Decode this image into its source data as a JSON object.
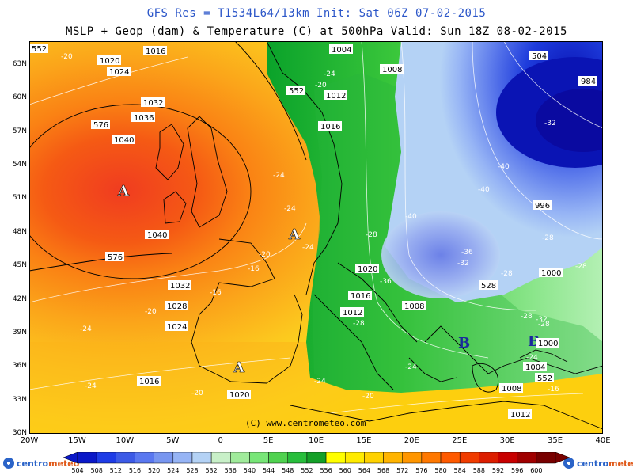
{
  "header": {
    "line1": "GFS Res = T1534L64/13km   Init: Sat 06Z 07-02-2015",
    "line2": "MSLP + Geop (dam) & Temperature (C) at 500hPa  Valid: Sun 18Z 08-02-2015"
  },
  "axes": {
    "lat_labels": [
      "63N",
      "60N",
      "57N",
      "54N",
      "51N",
      "48N",
      "45N",
      "42N",
      "39N",
      "36N",
      "33N",
      "30N"
    ],
    "lon_labels": [
      "20W",
      "15W",
      "10W",
      "5W",
      "0",
      "5E",
      "10E",
      "15E",
      "20E",
      "25E",
      "30E",
      "35E",
      "40E"
    ]
  },
  "pressure_centers": [
    {
      "label": "A",
      "lat": 51.5,
      "lon": -10
    },
    {
      "label": "A",
      "lat": 47.5,
      "lon": 8
    },
    {
      "label": "A",
      "lat": 36,
      "lon": 2
    },
    {
      "label": "B",
      "lat": 38.5,
      "lon": 26
    },
    {
      "label": "B",
      "lat": 38.5,
      "lon": 34
    }
  ],
  "isobar_labels": [
    "1020",
    "1024",
    "1032",
    "1036",
    "1040",
    "1040",
    "1032",
    "1028",
    "1024",
    "1016",
    "1020",
    "1016",
    "1004",
    "1008",
    "1012",
    "1016",
    "1020",
    "1016",
    "1012",
    "1008",
    "1000",
    "1004",
    "1008",
    "1012",
    "996",
    "984",
    "1000",
    "552"
  ],
  "isohypse_labels": [
    "576",
    "576",
    "552",
    "504",
    "528",
    "552"
  ],
  "temperature_labels": [
    "-20",
    "-24",
    "-24",
    "-20",
    "-16",
    "-16",
    "-20",
    "-24",
    "-20",
    "-24",
    "-20",
    "-24",
    "-24",
    "-28",
    "-40",
    "-36",
    "-40",
    "-40",
    "-36",
    "-32",
    "-28",
    "-28",
    "-32",
    "-28",
    "-28",
    "-24",
    "-24",
    "-20",
    "-16",
    "-24",
    "-28",
    "-28",
    "-32"
  ],
  "copyright": "(C) www.centrometeo.com",
  "logo": {
    "left": "centro",
    "left_accent": "meteo",
    "right": "centro",
    "right_accent": "meteo"
  },
  "colorbar": {
    "labels": [
      "504",
      "508",
      "512",
      "516",
      "520",
      "524",
      "528",
      "532",
      "536",
      "540",
      "544",
      "548",
      "552",
      "556",
      "560",
      "564",
      "568",
      "572",
      "576",
      "580",
      "584",
      "588",
      "592",
      "596",
      "600"
    ],
    "colors": [
      "#0a18c8",
      "#1e3ce6",
      "#3c5ae6",
      "#5a78f0",
      "#7896f0",
      "#96b4f5",
      "#b4d2f5",
      "#c8f0c8",
      "#a0eb9b",
      "#78e678",
      "#50d250",
      "#28be3c",
      "#14a028",
      "#ffff00",
      "#ffeb00",
      "#ffd200",
      "#ffb400",
      "#ff9600",
      "#ff7800",
      "#ff5a00",
      "#f03c00",
      "#dc1e00",
      "#c80000",
      "#a00000",
      "#780000"
    ]
  }
}
